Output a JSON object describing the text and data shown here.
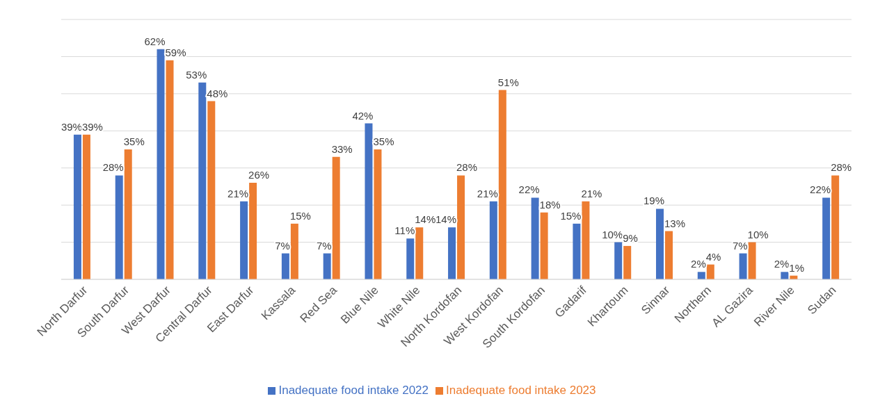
{
  "chart_data": {
    "type": "bar",
    "categories": [
      "North Darfur",
      "South Darfur",
      "West Darfur",
      "Central Darfur",
      "East Darfur",
      "Kassala",
      "Red Sea",
      "Blue Nile",
      "White Nile",
      "North Kordofan",
      "West Kordofan",
      "South Kordofan",
      "Gadarif",
      "Khartoum",
      "Sinnar",
      "Northern",
      "AL Gazira",
      "River Nile",
      "Sudan"
    ],
    "series": [
      {
        "name": "Inadequate food intake 2022",
        "color": "#4472c4",
        "values": [
          39,
          28,
          62,
          53,
          21,
          7,
          7,
          42,
          11,
          14,
          21,
          22,
          15,
          10,
          19,
          2,
          7,
          2,
          22
        ],
        "value_labels": [
          "39%",
          "28%",
          "62%",
          "53%",
          "21%",
          "7%",
          "7%",
          "42%",
          "11%",
          "14%",
          "21%",
          "22%",
          "15%",
          "10%",
          "19%",
          "2%",
          "7%",
          "2%",
          "22%"
        ]
      },
      {
        "name": "Inadequate food intake 2023",
        "color": "#ed7d31",
        "values": [
          39,
          35,
          59,
          48,
          26,
          15,
          33,
          35,
          14,
          28,
          51,
          18,
          21,
          9,
          13,
          4,
          10,
          1,
          28
        ],
        "value_labels": [
          "39%",
          "35%",
          "59%",
          "48%",
          "26%",
          "15%",
          "33%",
          "35%",
          "14%",
          "28%",
          "51%",
          "18%",
          "21%",
          "9%",
          "13%",
          "4%",
          "10%",
          "1%",
          "28%"
        ]
      }
    ],
    "ylim": [
      0,
      70
    ],
    "yticks": [
      {
        "value": 0,
        "label": null
      },
      {
        "value": 10,
        "label": null
      },
      {
        "value": 20,
        "label": null
      },
      {
        "value": 30,
        "label": null
      },
      {
        "value": 40,
        "label": null
      },
      {
        "value": 50,
        "label": null
      },
      {
        "value": 60,
        "label": null
      },
      {
        "value": 70,
        "label": null
      }
    ],
    "grid": "y",
    "legend": "bottom"
  }
}
